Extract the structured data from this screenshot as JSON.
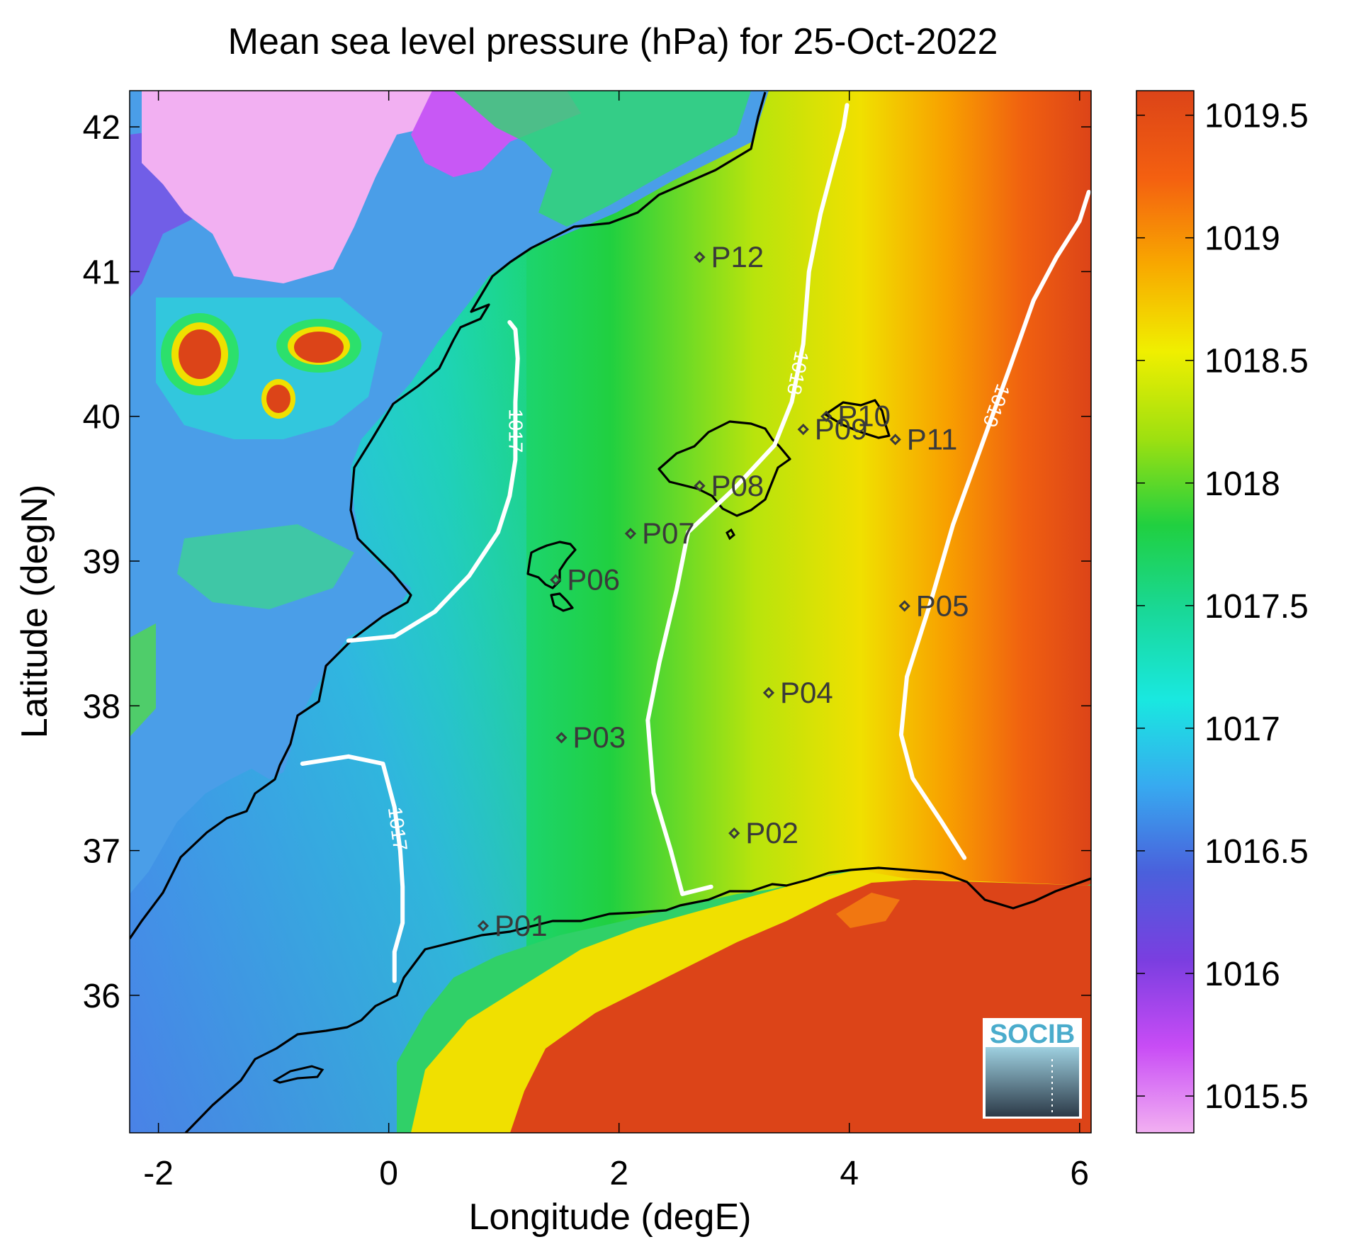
{
  "title": "Mean sea level pressure (hPa) for 25-Oct-2022",
  "xlabel": "Longitude (degE)",
  "ylabel": "Latitude (degN)",
  "x_range": [
    -2.25,
    6.1
  ],
  "y_range": [
    35.05,
    42.25
  ],
  "x_ticks": [
    {
      "value": -2,
      "label": "-2"
    },
    {
      "value": 0,
      "label": "0"
    },
    {
      "value": 2,
      "label": "2"
    },
    {
      "value": 4,
      "label": "4"
    },
    {
      "value": 6,
      "label": "6"
    }
  ],
  "y_ticks": [
    {
      "value": 36,
      "label": "36"
    },
    {
      "value": 37,
      "label": "37"
    },
    {
      "value": 38,
      "label": "38"
    },
    {
      "value": 39,
      "label": "39"
    },
    {
      "value": 40,
      "label": "40"
    },
    {
      "value": 41,
      "label": "41"
    },
    {
      "value": 42,
      "label": "42"
    }
  ],
  "colorbar": {
    "range": [
      1015.35,
      1019.6
    ],
    "ticks": [
      {
        "value": 1015.5,
        "label": "1015.5"
      },
      {
        "value": 1016,
        "label": "1016"
      },
      {
        "value": 1016.5,
        "label": "1016.5"
      },
      {
        "value": 1017,
        "label": "1017"
      },
      {
        "value": 1017.5,
        "label": "1017.5"
      },
      {
        "value": 1018,
        "label": "1018"
      },
      {
        "value": 1018.5,
        "label": "1018.5"
      },
      {
        "value": 1019,
        "label": "1019"
      },
      {
        "value": 1019.5,
        "label": "1019.5"
      }
    ],
    "stops": [
      "#f2b0f2",
      "#c84cf5",
      "#7a3ee0",
      "#4a60dc",
      "#37aaf0",
      "#19e8e0",
      "#19d898",
      "#20d040",
      "#9ee010",
      "#f0ef00",
      "#f8a800",
      "#f46010",
      "#dc4418"
    ]
  },
  "contours": [
    {
      "label": "1017",
      "points": [
        [
          1.05,
          40.65
        ],
        [
          1.1,
          40.6
        ],
        [
          1.12,
          40.4
        ],
        [
          1.1,
          40.1
        ],
        [
          1.1,
          39.7
        ],
        [
          1.05,
          39.45
        ],
        [
          0.95,
          39.2
        ],
        [
          0.7,
          38.9
        ],
        [
          0.4,
          38.65
        ],
        [
          0.05,
          38.48
        ],
        [
          -0.35,
          38.45
        ]
      ]
    },
    {
      "label": "1017",
      "points": [
        [
          -0.75,
          37.6
        ],
        [
          -0.35,
          37.65
        ],
        [
          -0.05,
          37.6
        ],
        [
          0.05,
          37.3
        ],
        [
          0.1,
          37
        ],
        [
          0.12,
          36.75
        ],
        [
          0.12,
          36.5
        ],
        [
          0.05,
          36.3
        ],
        [
          0.05,
          36.1
        ]
      ]
    },
    {
      "label": "1018",
      "points": [
        [
          3.98,
          42.15
        ],
        [
          3.95,
          42.0
        ],
        [
          3.85,
          41.7
        ],
        [
          3.75,
          41.4
        ],
        [
          3.65,
          41.0
        ],
        [
          3.6,
          40.5
        ],
        [
          3.5,
          40.1
        ],
        [
          3.35,
          39.8
        ],
        [
          3.0,
          39.5
        ],
        [
          2.6,
          39.2
        ],
        [
          2.5,
          38.8
        ],
        [
          2.35,
          38.3
        ],
        [
          2.25,
          37.9
        ],
        [
          2.3,
          37.4
        ],
        [
          2.45,
          37.0
        ],
        [
          2.55,
          36.7
        ],
        [
          2.8,
          36.75
        ]
      ]
    },
    {
      "label": "1019",
      "points": [
        [
          6.08,
          41.55
        ],
        [
          6.0,
          41.35
        ],
        [
          5.8,
          41.1
        ],
        [
          5.6,
          40.8
        ],
        [
          5.4,
          40.35
        ],
        [
          5.15,
          39.8
        ],
        [
          4.9,
          39.25
        ],
        [
          4.7,
          38.7
        ],
        [
          4.5,
          38.2
        ],
        [
          4.45,
          37.8
        ],
        [
          4.55,
          37.5
        ],
        [
          4.8,
          37.2
        ],
        [
          5.0,
          36.95
        ]
      ]
    }
  ],
  "stations": [
    {
      "label": "P01",
      "lon": 0.82,
      "lat": 36.48
    },
    {
      "label": "P02",
      "lon": 3.0,
      "lat": 37.12
    },
    {
      "label": "P03",
      "lon": 1.5,
      "lat": 37.78
    },
    {
      "label": "P04",
      "lon": 3.3,
      "lat": 38.09
    },
    {
      "label": "P05",
      "lon": 4.48,
      "lat": 38.69
    },
    {
      "label": "P06",
      "lon": 1.45,
      "lat": 38.87
    },
    {
      "label": "P07",
      "lon": 2.1,
      "lat": 39.19
    },
    {
      "label": "P08",
      "lon": 2.7,
      "lat": 39.52
    },
    {
      "label": "P09",
      "lon": 3.6,
      "lat": 39.91
    },
    {
      "label": "P10",
      "lon": 3.8,
      "lat": 40.0
    },
    {
      "label": "P11",
      "lon": 4.4,
      "lat": 39.84
    },
    {
      "label": "P12",
      "lon": 2.7,
      "lat": 41.1
    }
  ],
  "logo_text": "SOCIB"
}
